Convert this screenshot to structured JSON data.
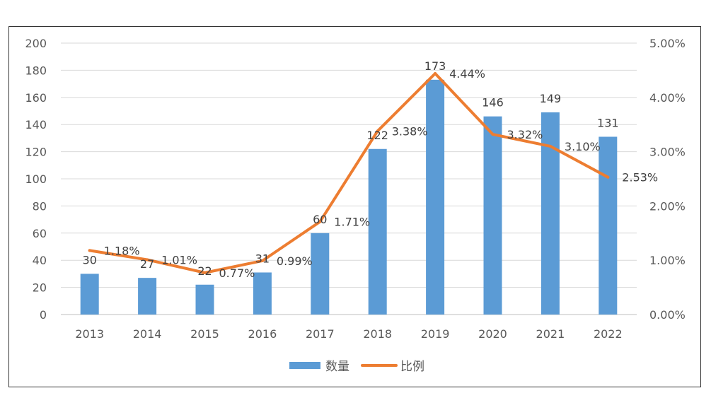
{
  "chart_data": {
    "type": "bar",
    "categories": [
      "2013",
      "2014",
      "2015",
      "2016",
      "2017",
      "2018",
      "2019",
      "2020",
      "2021",
      "2022"
    ],
    "series": [
      {
        "name": "数量",
        "type": "bar",
        "axis": "left",
        "color": "#5b9bd5",
        "values": [
          30,
          27,
          22,
          31,
          60,
          122,
          173,
          146,
          149,
          131
        ],
        "labels": [
          "30",
          "27",
          "22",
          "31",
          "60",
          "122",
          "173",
          "146",
          "149",
          "131"
        ]
      },
      {
        "name": "比例",
        "type": "line",
        "axis": "right",
        "color": "#ed7d31",
        "values": [
          1.18,
          1.01,
          0.77,
          0.99,
          1.71,
          3.38,
          4.44,
          3.32,
          3.1,
          2.53
        ],
        "labels": [
          "1.18%",
          "1.01%",
          "0.77%",
          "0.99%",
          "1.71%",
          "3.38%",
          "4.44%",
          "3.32%",
          "3.10%",
          "2.53%"
        ]
      }
    ],
    "y_left": {
      "min": 0,
      "max": 200,
      "ticks": [
        "0",
        "20",
        "40",
        "60",
        "80",
        "100",
        "120",
        "140",
        "160",
        "180",
        "200"
      ]
    },
    "y_right": {
      "min": 0,
      "max": 5,
      "ticks": [
        "0.00%",
        "1.00%",
        "2.00%",
        "3.00%",
        "4.00%",
        "5.00%"
      ]
    },
    "grid": true,
    "legend": "bottom",
    "gridColor": "#d9d9d9"
  }
}
